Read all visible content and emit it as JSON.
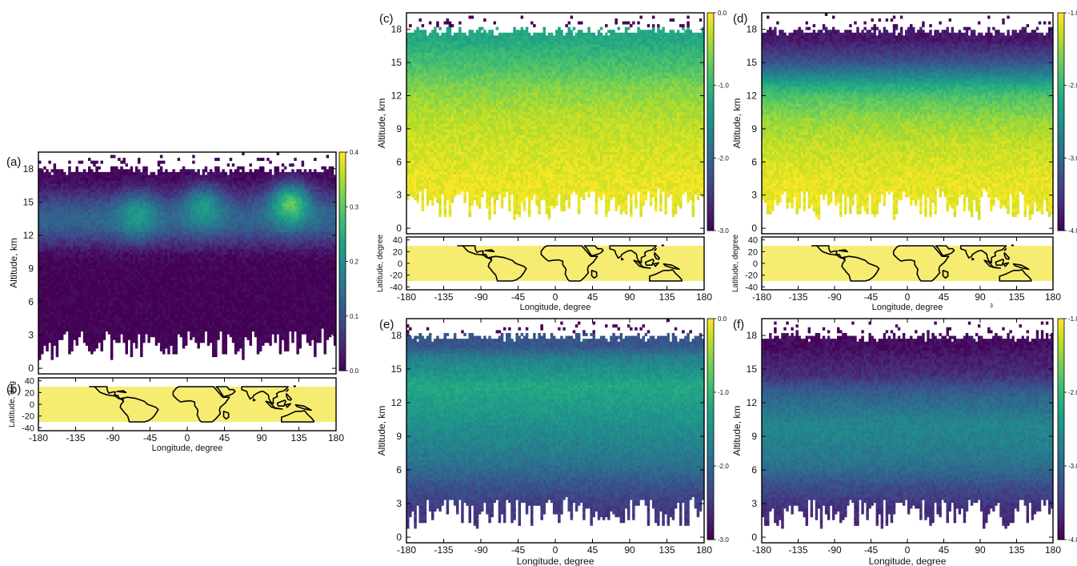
{
  "colors": {
    "viridis": [
      "#440154",
      "#3b528b",
      "#21908d",
      "#5dc963",
      "#fde725"
    ],
    "land_fill": "#f6ec72",
    "coast": "#000000",
    "missing": "#ffffff"
  },
  "chart_data": [
    {
      "id": "a",
      "type": "heatmap",
      "panel_label": "(a)",
      "xlabel": "",
      "ylabel": "Altitude, km",
      "xlim": [
        -180,
        180
      ],
      "ylim": [
        -0.5,
        19.5
      ],
      "yticks": [
        0,
        3,
        6,
        9,
        12,
        15,
        18
      ],
      "ytick_labels": [
        "0",
        "3",
        "6",
        "9",
        "12",
        "15",
        "18"
      ],
      "colorbar": {
        "ticks": [
          0.0,
          0.1,
          0.2,
          0.3,
          0.4
        ],
        "tick_labels": [
          "0.0",
          "0.1",
          "0.2",
          "0.3",
          "0.4"
        ],
        "range": [
          0.0,
          0.4
        ]
      },
      "data_extent": {
        "bottom_km_range": [
          0.8,
          3.5
        ],
        "top_km_range": [
          17.5,
          18.2
        ]
      },
      "features": [
        {
          "type": "layer",
          "km_range": [
            0.5,
            8
          ],
          "value": 0.0
        },
        {
          "type": "layer",
          "km_range": [
            8,
            11
          ],
          "value": 0.08
        },
        {
          "type": "peak",
          "lon": -60,
          "km": 13.8,
          "value": 0.22
        },
        {
          "type": "peak",
          "lon": 20,
          "km": 14.5,
          "value": 0.22
        },
        {
          "type": "peak",
          "lon": 125,
          "km": 14.8,
          "value": 0.3
        },
        {
          "type": "baseline",
          "km": 13.5,
          "value": 0.13
        }
      ]
    },
    {
      "id": "b",
      "type": "map",
      "panel_label": "(b)",
      "xlabel": "Longitude, degree",
      "ylabel": "Latitude, deg",
      "xlim": [
        -180,
        180
      ],
      "ylim": [
        -45,
        45
      ],
      "xticks": [
        -180,
        -135,
        -90,
        -45,
        0,
        45,
        90,
        135,
        180
      ],
      "xtick_labels": [
        "-180",
        "-135",
        "-90",
        "-45",
        "0",
        "45",
        "90",
        "135",
        "180"
      ],
      "yticks": [
        -40,
        -20,
        0,
        20,
        40
      ],
      "ytick_labels": [
        "-40",
        "-20",
        "0",
        "20",
        "40"
      ],
      "band_latitude": [
        -30,
        30
      ]
    },
    {
      "id": "c",
      "type": "heatmap",
      "panel_label": "(c)",
      "xlabel": "",
      "ylabel": "Altitude, km",
      "xlim": [
        -180,
        180
      ],
      "ylim": [
        -0.5,
        19.5
      ],
      "yticks": [
        0,
        3,
        6,
        9,
        12,
        15,
        18
      ],
      "ytick_labels": [
        "0",
        "3",
        "6",
        "9",
        "12",
        "15",
        "18"
      ],
      "colorbar": {
        "ticks": [
          0.0,
          -1.0,
          -2.0,
          -3.0
        ],
        "tick_labels": [
          "0.0",
          "-1.0",
          "-2.0",
          "-3.0"
        ],
        "range": [
          -3.0,
          0.0
        ]
      },
      "data_extent": {
        "bottom_km_range": [
          0.8,
          3.5
        ],
        "top_km_range": [
          17.5,
          18.2
        ]
      },
      "features": [
        {
          "type": "layer",
          "km_range": [
            0.5,
            8
          ],
          "value": -0.1
        },
        {
          "type": "layer",
          "km_range": [
            8,
            13
          ],
          "value": -0.35
        },
        {
          "type": "layer",
          "km_range": [
            13,
            16
          ],
          "value": -0.85
        },
        {
          "type": "layer",
          "km_range": [
            16,
            18.2
          ],
          "value": -1.2
        }
      ]
    },
    {
      "id": "c-map",
      "type": "map",
      "panel_label": "",
      "xlabel": "Longitude, degree",
      "ylabel": "Latitude, degree",
      "xlim": [
        -180,
        180
      ],
      "ylim": [
        -45,
        45
      ],
      "xticks": [
        -180,
        -135,
        -90,
        -45,
        0,
        45,
        90,
        135,
        180
      ],
      "xtick_labels": [
        "-180",
        "-135",
        "-90",
        "-45",
        "0",
        "45",
        "90",
        "135",
        "180"
      ],
      "yticks": [
        -40,
        -20,
        0,
        20,
        40
      ],
      "ytick_labels": [
        "-40",
        "-20",
        "0",
        "20",
        "40"
      ],
      "band_latitude": [
        -30,
        30
      ]
    },
    {
      "id": "d",
      "type": "heatmap",
      "panel_label": "(d)",
      "xlabel": "",
      "ylabel": "Altitude, km",
      "xlim": [
        -180,
        180
      ],
      "ylim": [
        -0.5,
        19.5
      ],
      "yticks": [
        0,
        3,
        6,
        9,
        12,
        15,
        18
      ],
      "ytick_labels": [
        "0",
        "3",
        "6",
        "9",
        "12",
        "15",
        "18"
      ],
      "colorbar": {
        "ticks": [
          -1.0,
          -2.0,
          -3.0,
          -4.0
        ],
        "tick_labels": [
          "-1.0",
          "-2.0",
          "-3.0",
          "-4.0"
        ],
        "range": [
          -4.0,
          -1.0
        ]
      },
      "data_extent": {
        "bottom_km_range": [
          0.8,
          3.5
        ],
        "top_km_range": [
          17.5,
          18.2
        ]
      },
      "features": [
        {
          "type": "layer",
          "km_range": [
            0.5,
            8
          ],
          "value": -1.1
        },
        {
          "type": "layer",
          "km_range": [
            8,
            12
          ],
          "value": -1.5
        },
        {
          "type": "layer",
          "km_range": [
            12,
            14
          ],
          "value": -2.2
        },
        {
          "type": "layer",
          "km_range": [
            14,
            16
          ],
          "value": -3.2
        },
        {
          "type": "layer",
          "km_range": [
            16,
            18.2
          ],
          "value": -3.8
        }
      ]
    },
    {
      "id": "d-map",
      "type": "map",
      "panel_label": "",
      "xlabel": "Longitude, degree",
      "ylabel": "Latitude, degree",
      "xlim": [
        -180,
        180
      ],
      "ylim": [
        -45,
        45
      ],
      "xticks": [
        -180,
        -135,
        -90,
        -45,
        0,
        45,
        90,
        135,
        180
      ],
      "xtick_labels": [
        "-180",
        "-135",
        "-90",
        "-45",
        "0",
        "45",
        "90",
        "135",
        "180"
      ],
      "yticks": [
        -40,
        -20,
        0,
        20,
        40
      ],
      "ytick_labels": [
        "-40",
        "-20",
        "0",
        "20",
        "40"
      ],
      "band_latitude": [
        -30,
        30
      ],
      "note": "3"
    },
    {
      "id": "e",
      "type": "heatmap",
      "panel_label": "(e)",
      "xlabel": "Longitude, degree",
      "ylabel": "Altitude, km",
      "xlim": [
        -180,
        180
      ],
      "ylim": [
        -0.5,
        19.5
      ],
      "xticks": [
        -180,
        -135,
        -90,
        -45,
        0,
        45,
        90,
        135,
        180
      ],
      "xtick_labels": [
        "-180",
        "-135",
        "-90",
        "-45",
        "0",
        "45",
        "90",
        "135",
        "180"
      ],
      "yticks": [
        0,
        3,
        6,
        9,
        12,
        15,
        18
      ],
      "ytick_labels": [
        "0",
        "3",
        "6",
        "9",
        "12",
        "15",
        "18"
      ],
      "colorbar": {
        "ticks": [
          0.0,
          -1.0,
          -2.0,
          -3.0
        ],
        "tick_labels": [
          "0.0",
          "-1.0",
          "-2.0",
          "-3.0"
        ],
        "range": [
          -3.0,
          0.0
        ]
      },
      "data_extent": {
        "bottom_km_range": [
          0.8,
          3.5
        ],
        "top_km_range": [
          17.5,
          18.2
        ]
      },
      "features": [
        {
          "type": "layer",
          "km_range": [
            0.5,
            4.5
          ],
          "value": -2.5
        },
        {
          "type": "layer",
          "km_range": [
            4.5,
            7
          ],
          "value": -2.0
        },
        {
          "type": "layer",
          "km_range": [
            7,
            11
          ],
          "value": -1.6
        },
        {
          "type": "layer",
          "km_range": [
            11,
            16
          ],
          "value": -1.2
        },
        {
          "type": "layer",
          "km_range": [
            16,
            18.2
          ],
          "value": -2.2
        }
      ]
    },
    {
      "id": "f",
      "type": "heatmap",
      "panel_label": "(f)",
      "xlabel": "Longitude, degree",
      "ylabel": "Altitude, km",
      "xlim": [
        -180,
        180
      ],
      "ylim": [
        -0.5,
        19.5
      ],
      "xticks": [
        -180,
        -135,
        -90,
        -45,
        0,
        45,
        90,
        135,
        180
      ],
      "xtick_labels": [
        "-180",
        "-135",
        "-90",
        "-45",
        "0",
        "45",
        "90",
        "135",
        "180"
      ],
      "yticks": [
        0,
        3,
        6,
        9,
        12,
        15,
        18
      ],
      "ytick_labels": [
        "0",
        "3",
        "6",
        "9",
        "12",
        "15",
        "18"
      ],
      "colorbar": {
        "ticks": [
          -1.0,
          -2.0,
          -3.0,
          -4.0
        ],
        "tick_labels": [
          "-1.0",
          "-2.0",
          "-3.0",
          "-4.0"
        ],
        "range": [
          -4.0,
          -1.0
        ]
      },
      "data_extent": {
        "bottom_km_range": [
          0.8,
          3.5
        ],
        "top_km_range": [
          17.5,
          18.2
        ]
      },
      "features": [
        {
          "type": "layer",
          "km_range": [
            0.5,
            4.5
          ],
          "value": -3.6
        },
        {
          "type": "layer",
          "km_range": [
            4.5,
            7
          ],
          "value": -3.0
        },
        {
          "type": "layer",
          "km_range": [
            7,
            13
          ],
          "value": -2.6
        },
        {
          "type": "layer",
          "km_range": [
            13,
            16
          ],
          "value": -3.6
        },
        {
          "type": "layer",
          "km_range": [
            16,
            18.2
          ],
          "value": -3.9
        }
      ]
    }
  ]
}
